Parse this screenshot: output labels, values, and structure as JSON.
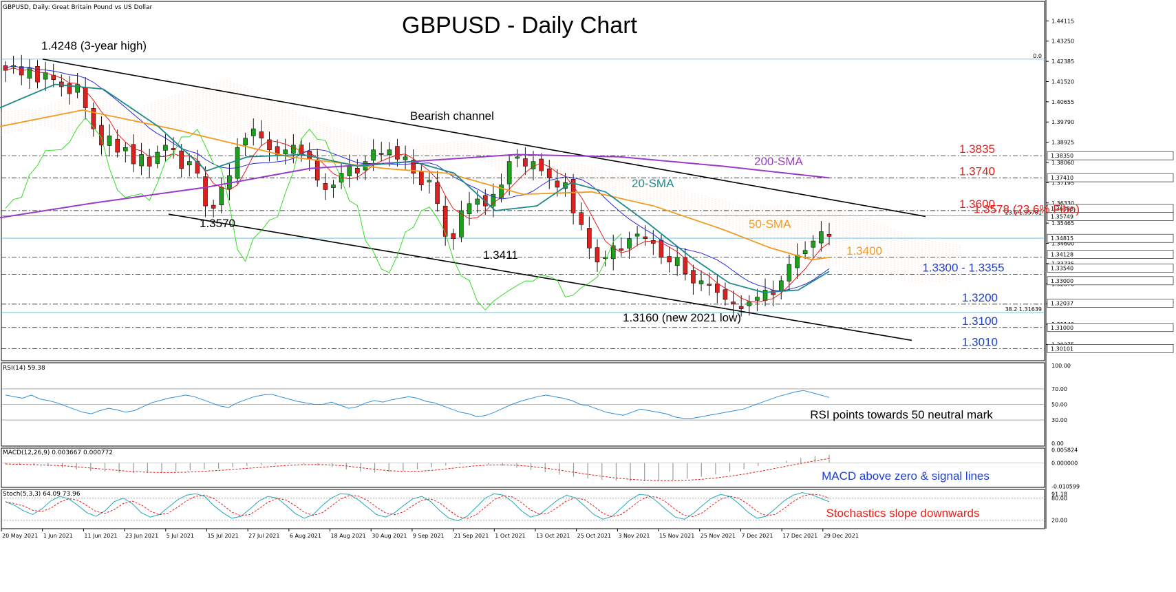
{
  "header": {
    "symbol_line": "GBPUSD, Daily:  Great Britain Pound vs US Dollar",
    "title": "GBPUSD - Daily Chart"
  },
  "colors": {
    "bull": "#1aa31a",
    "bear": "#e0201c",
    "sma20": "#1f8a8a",
    "sma50": "#f39a1e",
    "sma200": "#9a3ac9",
    "tenkan": "#e0201c",
    "kijun": "#2a2ad6",
    "chikou": "#33dd22",
    "cloud": "#f0a070",
    "rsi": "#2f8fd8",
    "macd_hist": "#9a9a9a",
    "macd_signal": "#e0201c",
    "stoch_main": "#22a8b8",
    "stoch_signal": "#e0201c",
    "level_label_red": "#e0201c",
    "level_label_blue": "#1f3fcf"
  },
  "chart_data": [
    {
      "type": "candlestick",
      "title": "GBPUSD - Daily Chart",
      "ylim": [
        1.2958,
        1.4495
      ],
      "x_ticks": [
        "20 May 2021",
        "1 Jun 2021",
        "11 Jun 2021",
        "23 Jun 2021",
        "5 Jul 2021",
        "15 Jul 2021",
        "27 Jul 2021",
        "6 Aug 2021",
        "18 Aug 2021",
        "30 Aug 2021",
        "9 Sep 2021",
        "21 Sep 2021",
        "1 Oct 2021",
        "13 Oct 2021",
        "25 Oct 2021",
        "3 Nov 2021",
        "15 Nov 2021",
        "25 Nov 2021",
        "7 Dec 2021",
        "17 Dec 2021",
        "29 Dec 2021"
      ],
      "y_ticks": [
        "1.44115",
        "1.43250",
        "1.42385",
        "1.41520",
        "1.40655",
        "1.39790",
        "1.38925",
        "1.38060",
        "1.37195",
        "1.36330",
        "1.35465",
        "1.34600",
        "1.33735",
        "1.32870",
        "1.32005",
        "1.31140",
        "1.30275"
      ],
      "price_tags": [
        {
          "label": "1.36088",
          "value": 1.36088,
          "color": "#ffffff"
        },
        {
          "label": "1.35749",
          "value": 1.35749,
          "color": "#ffffff"
        },
        {
          "label": "1.34815",
          "value": 1.34815,
          "color": "#ffffff"
        },
        {
          "label": "1.34128",
          "value": 1.34128,
          "color": "#ffffff"
        },
        {
          "label": "1.33540",
          "value": 1.3354,
          "color": "#ffffff"
        },
        {
          "label": "1.33000",
          "value": 1.33,
          "color": "#ffffff"
        },
        {
          "label": "1.32037",
          "value": 1.32037,
          "color": "#ffffff"
        },
        {
          "label": "1.31000",
          "value": 1.31,
          "color": "#ffffff"
        },
        {
          "label": "1.30101",
          "value": 1.30101,
          "color": "#ffffff"
        },
        {
          "label": "1.38350",
          "value": 1.3835,
          "color": "#ffffff"
        },
        {
          "label": "1.37410",
          "value": 1.3741,
          "color": "#ffffff"
        }
      ],
      "fib_labels": [
        {
          "label": "0.0",
          "value": 1.4248
        },
        {
          "label": "23.6 1.35781",
          "value": 1.3578
        },
        {
          "label": "38.2 1.31639",
          "value": 1.3164
        }
      ],
      "levels": [
        {
          "label": "1.3835",
          "value": 1.3835,
          "color": "red"
        },
        {
          "label": "1.3740",
          "value": 1.374,
          "color": "red"
        },
        {
          "label": "1.3600",
          "value": 1.36,
          "color": "red"
        },
        {
          "label": "1.3578 (23.6% Fibo)",
          "value": 1.3578,
          "color": "red"
        },
        {
          "label": "1.3400",
          "value": 1.34,
          "color": "orange"
        },
        {
          "label": "1.3300 - 1.3355",
          "value": 1.3328,
          "color": "blue"
        },
        {
          "label": "1.3200",
          "value": 1.32,
          "color": "blue"
        },
        {
          "label": "1.3100",
          "value": 1.31,
          "color": "blue"
        },
        {
          "label": "1.3010",
          "value": 1.301,
          "color": "blue"
        }
      ],
      "annotations": [
        {
          "text": "1.4248 (3-year high)"
        },
        {
          "text": "Bearish channel"
        },
        {
          "text": "200-SMA"
        },
        {
          "text": "20-SMA"
        },
        {
          "text": "50-SMA"
        },
        {
          "text": "1.3570"
        },
        {
          "text": "1.3411"
        },
        {
          "text": "1.3160 (new 2021 low)"
        }
      ],
      "series": [
        {
          "name": "200-SMA",
          "points": [
            [
              0,
              1.357
            ],
            [
              130,
              1.363
            ],
            [
              300,
              1.37
            ],
            [
              450,
              1.378
            ],
            [
              600,
              1.381
            ],
            [
              750,
              1.384
            ],
            [
              900,
              1.383
            ],
            [
              1050,
              1.379
            ],
            [
              1205,
              1.374
            ]
          ]
        },
        {
          "name": "50-SMA",
          "points": [
            [
              0,
              1.396
            ],
            [
              120,
              1.403
            ],
            [
              250,
              1.395
            ],
            [
              420,
              1.383
            ],
            [
              560,
              1.378
            ],
            [
              650,
              1.376
            ],
            [
              760,
              1.367
            ],
            [
              860,
              1.368
            ],
            [
              950,
              1.362
            ],
            [
              1050,
              1.352
            ],
            [
              1120,
              1.344
            ],
            [
              1180,
              1.339
            ],
            [
              1205,
              1.34
            ]
          ]
        },
        {
          "name": "20-SMA",
          "points": [
            [
              0,
              1.404
            ],
            [
              80,
              1.414
            ],
            [
              150,
              1.412
            ],
            [
              230,
              1.396
            ],
            [
              300,
              1.377
            ],
            [
              360,
              1.383
            ],
            [
              440,
              1.384
            ],
            [
              520,
              1.379
            ],
            [
              600,
              1.381
            ],
            [
              660,
              1.376
            ],
            [
              720,
              1.36
            ],
            [
              780,
              1.362
            ],
            [
              830,
              1.372
            ],
            [
              880,
              1.368
            ],
            [
              940,
              1.355
            ],
            [
              1000,
              1.341
            ],
            [
              1060,
              1.329
            ],
            [
              1110,
              1.325
            ],
            [
              1160,
              1.326
            ],
            [
              1205,
              1.334
            ]
          ]
        }
      ],
      "channel": {
        "upper": [
          [
            62,
            1.4248
          ],
          [
            1345,
            1.3575
          ]
        ],
        "lower": [
          [
            245,
            1.3585
          ],
          [
            1325,
            1.3045
          ]
        ]
      },
      "candles": [
        1.42,
        1.422,
        1.418,
        1.421,
        1.415,
        1.419,
        1.416,
        1.413,
        1.41,
        1.414,
        1.404,
        1.395,
        1.388,
        1.392,
        1.385,
        1.387,
        1.38,
        1.384,
        1.379,
        1.385,
        1.388,
        1.386,
        1.378,
        1.381,
        1.376,
        1.362,
        1.361,
        1.37,
        1.375,
        1.387,
        1.391,
        1.395,
        1.391,
        1.386,
        1.384,
        1.386,
        1.388,
        1.384,
        1.382,
        1.373,
        1.369,
        1.371,
        1.376,
        1.379,
        1.376,
        1.381,
        1.386,
        1.384,
        1.386,
        1.382,
        1.383,
        1.376,
        1.371,
        1.373,
        1.363,
        1.349,
        1.348,
        1.36,
        1.363,
        1.365,
        1.362,
        1.367,
        1.371,
        1.381,
        1.383,
        1.379,
        1.381,
        1.377,
        1.374,
        1.37,
        1.372,
        1.359,
        1.354,
        1.344,
        1.338,
        1.34,
        1.345,
        1.343,
        1.348,
        1.35,
        1.348,
        1.346,
        1.34,
        1.338,
        1.34,
        1.333,
        1.329,
        1.33,
        1.328,
        1.325,
        1.322,
        1.32,
        1.318,
        1.321,
        1.323,
        1.326,
        1.324,
        1.33,
        1.337,
        1.341,
        1.343,
        1.347,
        1.351,
        1.349
      ]
    },
    {
      "type": "line",
      "name": "RSI",
      "label": "RSI(14) 59.38",
      "ylim": [
        0,
        100
      ],
      "y_ticks": [
        "100.00",
        "70.00",
        "50.00",
        "30.00",
        "0.00"
      ],
      "note": "RSI points towards 50 neutral mark",
      "values": [
        62,
        60,
        58,
        62,
        57,
        55,
        52,
        48,
        44,
        40,
        38,
        42,
        45,
        43,
        40,
        42,
        47,
        52,
        55,
        58,
        60,
        62,
        60,
        56,
        52,
        48,
        46,
        52,
        56,
        60,
        62,
        63,
        60,
        57,
        54,
        52,
        50,
        50,
        53,
        49,
        45,
        47,
        52,
        55,
        53,
        56,
        58,
        60,
        58,
        54,
        52,
        48,
        44,
        40,
        38,
        34,
        36,
        40,
        45,
        50,
        54,
        57,
        60,
        62,
        60,
        58,
        55,
        50,
        48,
        44,
        40,
        38,
        36,
        40,
        44,
        42,
        40,
        38,
        34,
        32,
        32,
        34,
        36,
        38,
        40,
        42,
        44,
        48,
        52,
        56,
        60,
        63,
        66,
        68,
        65,
        62,
        59
      ]
    },
    {
      "type": "bar",
      "name": "MACD",
      "label": "MACD(12,26,9) 0.003667 0.000772",
      "ylim": [
        -0.011,
        0.0066
      ],
      "y_ticks": [
        "0.005824",
        "0.000000",
        "-0.010599"
      ],
      "note": "MACD above zero & signal lines",
      "values": [
        -0.0005,
        -0.0008,
        -0.0012,
        -0.0016,
        -0.0022,
        -0.003,
        -0.0036,
        -0.004,
        -0.0044,
        -0.0046,
        -0.0045,
        -0.0042,
        -0.0038,
        -0.0034,
        -0.003,
        -0.0026,
        -0.002,
        -0.0014,
        -0.001,
        -0.0006,
        -0.0004,
        -0.0006,
        -0.0012,
        -0.002,
        -0.003,
        -0.004,
        -0.0044,
        -0.0042,
        -0.0036,
        -0.0028,
        -0.002,
        -0.0012,
        -0.0006,
        -0.0004,
        -0.0008,
        -0.0014,
        -0.0022,
        -0.0032,
        -0.0042,
        -0.0052,
        -0.0062,
        -0.007,
        -0.0076,
        -0.008,
        -0.0082,
        -0.0082,
        -0.008,
        -0.0076,
        -0.007,
        -0.0062,
        -0.0052,
        -0.004,
        -0.0028,
        -0.0014,
        -0.0002,
        0.001,
        0.0022,
        0.003,
        0.0036
      ]
    },
    {
      "type": "line",
      "name": "Stochastic",
      "label": "Stoch(5,3,3) 64.09 73.96",
      "ylim": [
        0,
        100
      ],
      "y_ticks": [
        "91.18",
        "80.00",
        "20.00"
      ],
      "note": "Stochastics slope downwards",
      "values": [
        70,
        60,
        45,
        35,
        50,
        72,
        85,
        78,
        60,
        40,
        30,
        45,
        70,
        80,
        65,
        40,
        28,
        35,
        55,
        75,
        88,
        92,
        85,
        60,
        40,
        25,
        30,
        50,
        72,
        85,
        80,
        60,
        38,
        25,
        35,
        60,
        80,
        92,
        90,
        75,
        55,
        35,
        28,
        40,
        60,
        78,
        85,
        70,
        45,
        25,
        18,
        30,
        55,
        80,
        92,
        88,
        70,
        45,
        28,
        35,
        55,
        75,
        88,
        80,
        58,
        35,
        22,
        30,
        52,
        75,
        90,
        88,
        70,
        48,
        28,
        22,
        38,
        60,
        80,
        90,
        85,
        65,
        42,
        25,
        30,
        50,
        72,
        88,
        95,
        90,
        80,
        70
      ]
    }
  ]
}
